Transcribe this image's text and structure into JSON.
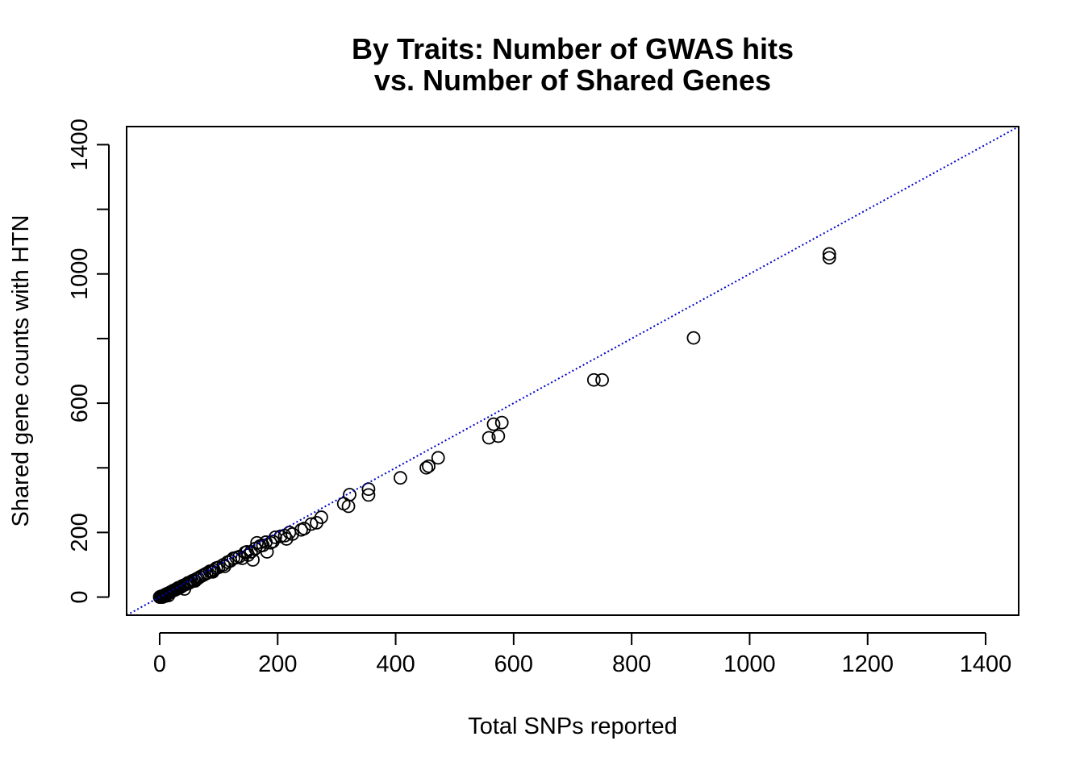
{
  "chart_data": {
    "type": "scatter",
    "title": [
      "By Traits: Number of GWAS hits",
      "vs. Number of Shared Genes"
    ],
    "xlabel": "Total SNPs reported",
    "ylabel": "Shared gene counts with HTN",
    "xlim": [
      -56,
      1456
    ],
    "ylim": [
      -56,
      1456
    ],
    "xticks": [
      0,
      200,
      400,
      600,
      800,
      1000,
      1200,
      1400
    ],
    "yticks": [
      0,
      200,
      400,
      600,
      800,
      1000,
      1200,
      1400
    ],
    "yticklabels": [
      "0",
      "200",
      "",
      "600",
      "",
      "1000",
      "",
      "1400"
    ],
    "reference_line": {
      "type": "identity",
      "slope": 1,
      "intercept": 0,
      "style": "dotted",
      "color": "#0000cc"
    },
    "point_color": "#000000",
    "grid": false,
    "points": [
      [
        1135,
        1062
      ],
      [
        1135,
        1050
      ],
      [
        905,
        802
      ],
      [
        736,
        672
      ],
      [
        750,
        672
      ],
      [
        566,
        535
      ],
      [
        580,
        540
      ],
      [
        558,
        493
      ],
      [
        574,
        498
      ],
      [
        472,
        431
      ],
      [
        456,
        405
      ],
      [
        452,
        400
      ],
      [
        408,
        369
      ],
      [
        354,
        334
      ],
      [
        354,
        316
      ],
      [
        322,
        317
      ],
      [
        312,
        289
      ],
      [
        320,
        281
      ],
      [
        274,
        247
      ],
      [
        266,
        230
      ],
      [
        257,
        226
      ],
      [
        245,
        212
      ],
      [
        240,
        208
      ],
      [
        225,
        195
      ],
      [
        220,
        200
      ],
      [
        212,
        190
      ],
      [
        215,
        180
      ],
      [
        205,
        188
      ],
      [
        196,
        185
      ],
      [
        192,
        172
      ],
      [
        188,
        168
      ],
      [
        180,
        170
      ],
      [
        182,
        140
      ],
      [
        175,
        160
      ],
      [
        170,
        158
      ],
      [
        165,
        168
      ],
      [
        162,
        150
      ],
      [
        158,
        115
      ],
      [
        155,
        140
      ],
      [
        150,
        130
      ],
      [
        148,
        140
      ],
      [
        145,
        138
      ],
      [
        140,
        120
      ],
      [
        135,
        125
      ],
      [
        130,
        122
      ],
      [
        125,
        120
      ],
      [
        120,
        112
      ],
      [
        115,
        108
      ],
      [
        110,
        95
      ],
      [
        108,
        100
      ],
      [
        100,
        92
      ],
      [
        96,
        90
      ],
      [
        92,
        84
      ],
      [
        90,
        78
      ],
      [
        88,
        80
      ],
      [
        85,
        80
      ],
      [
        80,
        74
      ],
      [
        76,
        70
      ],
      [
        72,
        66
      ],
      [
        68,
        62
      ],
      [
        65,
        58
      ],
      [
        62,
        56
      ],
      [
        60,
        50
      ],
      [
        58,
        52
      ],
      [
        55,
        50
      ],
      [
        52,
        46
      ],
      [
        50,
        44
      ],
      [
        48,
        44
      ],
      [
        45,
        40
      ],
      [
        42,
        25
      ],
      [
        40,
        36
      ],
      [
        38,
        34
      ],
      [
        35,
        30
      ],
      [
        32,
        29
      ],
      [
        30,
        27
      ],
      [
        28,
        24
      ],
      [
        26,
        22
      ],
      [
        24,
        21
      ],
      [
        22,
        19
      ],
      [
        20,
        17
      ],
      [
        18,
        15
      ],
      [
        16,
        13
      ],
      [
        14,
        11
      ],
      [
        12,
        10
      ],
      [
        10,
        8
      ],
      [
        8,
        6
      ],
      [
        7,
        5
      ],
      [
        6,
        4
      ],
      [
        5,
        3
      ],
      [
        4,
        3
      ],
      [
        3,
        2
      ],
      [
        2,
        1
      ],
      [
        2,
        2
      ],
      [
        1,
        1
      ],
      [
        1,
        0
      ],
      [
        0,
        0
      ],
      [
        5,
        0
      ],
      [
        3,
        1
      ],
      [
        10,
        3
      ],
      [
        15,
        5
      ]
    ]
  }
}
